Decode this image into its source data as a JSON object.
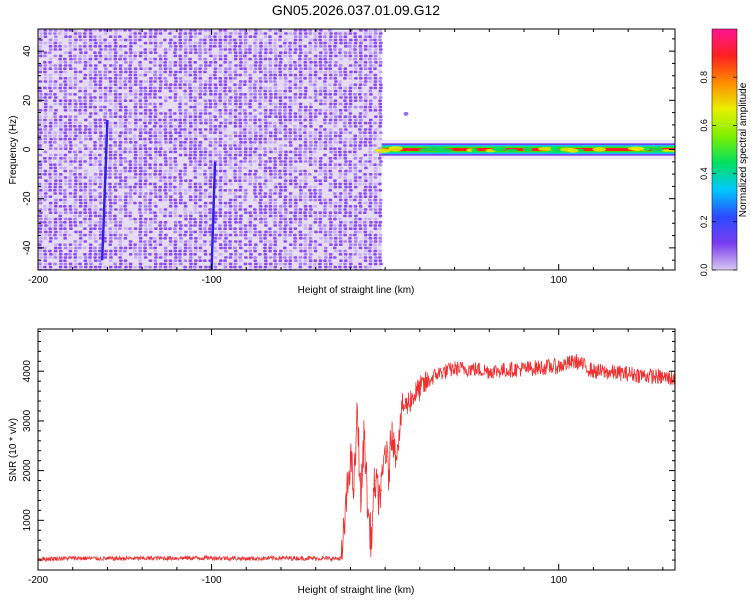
{
  "title": "GN05.2026.037.01.09.G12",
  "chart_data": [
    {
      "type": "heatmap",
      "xlabel": "Height of straight line (km)",
      "ylabel": "Frequency (Hz)",
      "xlim": [
        -200,
        167
      ],
      "ylim": [
        -49,
        49
      ],
      "xticks": [
        -200,
        -100,
        100
      ],
      "yticks": [
        -40,
        -20,
        0,
        20,
        40
      ],
      "colorbar": {
        "label": "Normalized spectral amplitude",
        "range": [
          0,
          1
        ],
        "ticks": [
          "0.0",
          "0.2",
          "0.4",
          "0.6",
          "0.8"
        ],
        "colors": [
          "#d8c8f0",
          "#7a3cf0",
          "#2a4bff",
          "#00c8ff",
          "#00e060",
          "#7ef000",
          "#e8f000",
          "#ff8c00",
          "#ff2020",
          "#ff1493"
        ]
      },
      "regions": [
        {
          "x": [
            -200,
            -2
          ],
          "y": [
            -49,
            49
          ],
          "level": 0.12,
          "description_label": "noise"
        },
        {
          "x": [
            -2,
            167
          ],
          "y": [
            -1,
            1
          ],
          "level": 0.9,
          "description_label": "carrier"
        }
      ],
      "streaks": [
        {
          "x_start": -163,
          "x_end": -160,
          "y_start": -45,
          "y_end": 12
        },
        {
          "x_start": -100,
          "x_end": -98,
          "y_start": -49,
          "y_end": -5
        }
      ]
    },
    {
      "type": "line",
      "xlabel": "Height of straight line (km)",
      "ylabel": "SNR (10 * v/v)",
      "xlim": [
        -200,
        167
      ],
      "ylim": [
        0,
        4850
      ],
      "xticks": [
        -200,
        -100,
        100
      ],
      "yticks": [
        1000,
        2000,
        3000,
        4000
      ],
      "color": "#f03030",
      "x": [
        -200,
        -180,
        -160,
        -140,
        -120,
        -100,
        -80,
        -60,
        -40,
        -25,
        -22,
        -20,
        -18,
        -16,
        -14,
        -12,
        -10,
        -8,
        -6,
        -4,
        -2,
        0,
        2,
        4,
        6,
        8,
        10,
        12,
        15,
        20,
        25,
        30,
        40,
        50,
        60,
        80,
        100,
        110,
        120,
        140,
        167
      ],
      "values": [
        220,
        240,
        230,
        235,
        240,
        245,
        230,
        240,
        235,
        230,
        1500,
        2300,
        1600,
        3200,
        1400,
        2800,
        1200,
        600,
        1800,
        1500,
        1600,
        2500,
        1900,
        2900,
        2300,
        2700,
        3300,
        3300,
        3450,
        3650,
        3800,
        3950,
        4050,
        4050,
        4000,
        4050,
        4100,
        4200,
        4000,
        3950,
        3850
      ]
    }
  ]
}
